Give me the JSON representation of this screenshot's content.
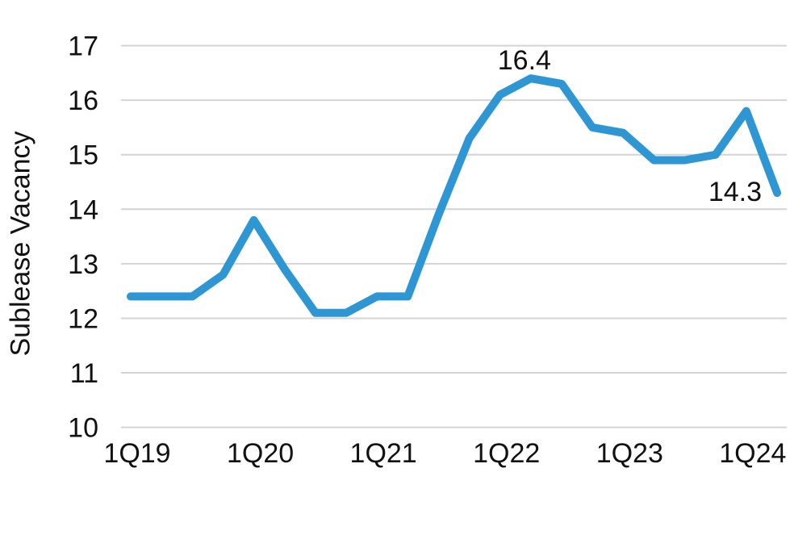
{
  "chart_data": {
    "type": "line",
    "title": "",
    "ylabel": "Sublease Vacancy",
    "xlabel": "",
    "x": [
      "1Q19",
      "2Q19",
      "3Q19",
      "4Q19",
      "1Q20",
      "2Q20",
      "3Q20",
      "4Q20",
      "1Q21",
      "2Q21",
      "3Q21",
      "4Q21",
      "1Q22",
      "2Q22",
      "3Q22",
      "4Q22",
      "1Q23",
      "2Q23",
      "3Q23",
      "4Q23",
      "1Q24",
      "2Q24"
    ],
    "series": [
      {
        "name": "Sublease Vacancy",
        "values": [
          12.4,
          12.4,
          12.4,
          12.8,
          13.8,
          12.9,
          12.1,
          12.1,
          12.4,
          12.4,
          13.9,
          15.3,
          16.1,
          16.4,
          16.3,
          15.5,
          15.4,
          14.9,
          14.9,
          15.0,
          15.8,
          14.3
        ]
      }
    ],
    "ylim": [
      10,
      17
    ],
    "yticks": [
      10,
      11,
      12,
      13,
      14,
      15,
      16,
      17
    ],
    "xtick_indices": [
      0,
      4,
      8,
      12,
      16,
      20
    ],
    "xtick_labels": [
      "1Q19",
      "1Q20",
      "1Q21",
      "1Q22",
      "1Q23",
      "1Q24"
    ],
    "grid": "horizontal",
    "legend": "none",
    "annotations": [
      {
        "index": 13,
        "label": "16.4",
        "position": "above"
      },
      {
        "index": 21,
        "label": "14.3",
        "position": "left"
      }
    ],
    "colors": {
      "line": "#2e97d3",
      "grid": "#d4d4d4",
      "text": "#111111",
      "background": "#ffffff"
    }
  }
}
